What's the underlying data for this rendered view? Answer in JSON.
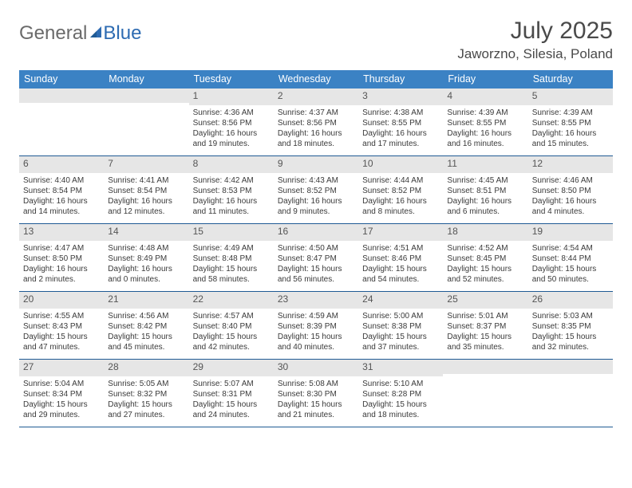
{
  "logo": {
    "text1": "General",
    "text2": "Blue",
    "color_gray": "#6a6a6a",
    "color_blue": "#2d6bb2"
  },
  "title": "July 2025",
  "location": "Jaworzno, Silesia, Poland",
  "styling": {
    "header_bg": "#3b82c4",
    "header_text": "#ffffff",
    "daynum_bg": "#e6e6e6",
    "daynum_text": "#555555",
    "cell_border": "#1f5a94",
    "body_text": "#3a3a3a",
    "page_bg": "#ffffff",
    "title_color": "#4a4a4a",
    "day_fontsize": 10,
    "header_fontsize": 12.5,
    "title_fontsize": 30,
    "location_fontsize": 17
  },
  "day_headers": [
    "Sunday",
    "Monday",
    "Tuesday",
    "Wednesday",
    "Thursday",
    "Friday",
    "Saturday"
  ],
  "weeks": [
    [
      {
        "n": "",
        "sr": "",
        "ss": "",
        "dl": ""
      },
      {
        "n": "",
        "sr": "",
        "ss": "",
        "dl": ""
      },
      {
        "n": "1",
        "sr": "Sunrise: 4:36 AM",
        "ss": "Sunset: 8:56 PM",
        "dl": "Daylight: 16 hours and 19 minutes."
      },
      {
        "n": "2",
        "sr": "Sunrise: 4:37 AM",
        "ss": "Sunset: 8:56 PM",
        "dl": "Daylight: 16 hours and 18 minutes."
      },
      {
        "n": "3",
        "sr": "Sunrise: 4:38 AM",
        "ss": "Sunset: 8:55 PM",
        "dl": "Daylight: 16 hours and 17 minutes."
      },
      {
        "n": "4",
        "sr": "Sunrise: 4:39 AM",
        "ss": "Sunset: 8:55 PM",
        "dl": "Daylight: 16 hours and 16 minutes."
      },
      {
        "n": "5",
        "sr": "Sunrise: 4:39 AM",
        "ss": "Sunset: 8:55 PM",
        "dl": "Daylight: 16 hours and 15 minutes."
      }
    ],
    [
      {
        "n": "6",
        "sr": "Sunrise: 4:40 AM",
        "ss": "Sunset: 8:54 PM",
        "dl": "Daylight: 16 hours and 14 minutes."
      },
      {
        "n": "7",
        "sr": "Sunrise: 4:41 AM",
        "ss": "Sunset: 8:54 PM",
        "dl": "Daylight: 16 hours and 12 minutes."
      },
      {
        "n": "8",
        "sr": "Sunrise: 4:42 AM",
        "ss": "Sunset: 8:53 PM",
        "dl": "Daylight: 16 hours and 11 minutes."
      },
      {
        "n": "9",
        "sr": "Sunrise: 4:43 AM",
        "ss": "Sunset: 8:52 PM",
        "dl": "Daylight: 16 hours and 9 minutes."
      },
      {
        "n": "10",
        "sr": "Sunrise: 4:44 AM",
        "ss": "Sunset: 8:52 PM",
        "dl": "Daylight: 16 hours and 8 minutes."
      },
      {
        "n": "11",
        "sr": "Sunrise: 4:45 AM",
        "ss": "Sunset: 8:51 PM",
        "dl": "Daylight: 16 hours and 6 minutes."
      },
      {
        "n": "12",
        "sr": "Sunrise: 4:46 AM",
        "ss": "Sunset: 8:50 PM",
        "dl": "Daylight: 16 hours and 4 minutes."
      }
    ],
    [
      {
        "n": "13",
        "sr": "Sunrise: 4:47 AM",
        "ss": "Sunset: 8:50 PM",
        "dl": "Daylight: 16 hours and 2 minutes."
      },
      {
        "n": "14",
        "sr": "Sunrise: 4:48 AM",
        "ss": "Sunset: 8:49 PM",
        "dl": "Daylight: 16 hours and 0 minutes."
      },
      {
        "n": "15",
        "sr": "Sunrise: 4:49 AM",
        "ss": "Sunset: 8:48 PM",
        "dl": "Daylight: 15 hours and 58 minutes."
      },
      {
        "n": "16",
        "sr": "Sunrise: 4:50 AM",
        "ss": "Sunset: 8:47 PM",
        "dl": "Daylight: 15 hours and 56 minutes."
      },
      {
        "n": "17",
        "sr": "Sunrise: 4:51 AM",
        "ss": "Sunset: 8:46 PM",
        "dl": "Daylight: 15 hours and 54 minutes."
      },
      {
        "n": "18",
        "sr": "Sunrise: 4:52 AM",
        "ss": "Sunset: 8:45 PM",
        "dl": "Daylight: 15 hours and 52 minutes."
      },
      {
        "n": "19",
        "sr": "Sunrise: 4:54 AM",
        "ss": "Sunset: 8:44 PM",
        "dl": "Daylight: 15 hours and 50 minutes."
      }
    ],
    [
      {
        "n": "20",
        "sr": "Sunrise: 4:55 AM",
        "ss": "Sunset: 8:43 PM",
        "dl": "Daylight: 15 hours and 47 minutes."
      },
      {
        "n": "21",
        "sr": "Sunrise: 4:56 AM",
        "ss": "Sunset: 8:42 PM",
        "dl": "Daylight: 15 hours and 45 minutes."
      },
      {
        "n": "22",
        "sr": "Sunrise: 4:57 AM",
        "ss": "Sunset: 8:40 PM",
        "dl": "Daylight: 15 hours and 42 minutes."
      },
      {
        "n": "23",
        "sr": "Sunrise: 4:59 AM",
        "ss": "Sunset: 8:39 PM",
        "dl": "Daylight: 15 hours and 40 minutes."
      },
      {
        "n": "24",
        "sr": "Sunrise: 5:00 AM",
        "ss": "Sunset: 8:38 PM",
        "dl": "Daylight: 15 hours and 37 minutes."
      },
      {
        "n": "25",
        "sr": "Sunrise: 5:01 AM",
        "ss": "Sunset: 8:37 PM",
        "dl": "Daylight: 15 hours and 35 minutes."
      },
      {
        "n": "26",
        "sr": "Sunrise: 5:03 AM",
        "ss": "Sunset: 8:35 PM",
        "dl": "Daylight: 15 hours and 32 minutes."
      }
    ],
    [
      {
        "n": "27",
        "sr": "Sunrise: 5:04 AM",
        "ss": "Sunset: 8:34 PM",
        "dl": "Daylight: 15 hours and 29 minutes."
      },
      {
        "n": "28",
        "sr": "Sunrise: 5:05 AM",
        "ss": "Sunset: 8:32 PM",
        "dl": "Daylight: 15 hours and 27 minutes."
      },
      {
        "n": "29",
        "sr": "Sunrise: 5:07 AM",
        "ss": "Sunset: 8:31 PM",
        "dl": "Daylight: 15 hours and 24 minutes."
      },
      {
        "n": "30",
        "sr": "Sunrise: 5:08 AM",
        "ss": "Sunset: 8:30 PM",
        "dl": "Daylight: 15 hours and 21 minutes."
      },
      {
        "n": "31",
        "sr": "Sunrise: 5:10 AM",
        "ss": "Sunset: 8:28 PM",
        "dl": "Daylight: 15 hours and 18 minutes."
      },
      {
        "n": "",
        "sr": "",
        "ss": "",
        "dl": ""
      },
      {
        "n": "",
        "sr": "",
        "ss": "",
        "dl": ""
      }
    ]
  ]
}
